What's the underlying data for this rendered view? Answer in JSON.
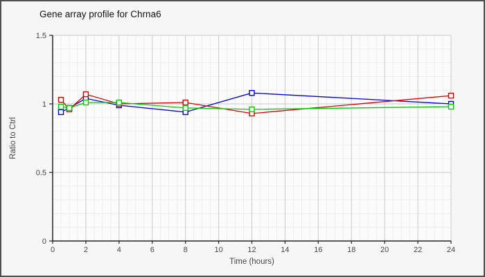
{
  "window": {
    "title": "Gene array profile for Chrna6"
  },
  "chart_data": {
    "type": "line",
    "title": "Gene array profile for Chrna6",
    "xlabel": "Time (hours)",
    "ylabel": "Ratio to Ctrl",
    "x": [
      0.5,
      1,
      2,
      4,
      8,
      12,
      24
    ],
    "series": [
      {
        "name": "series-blue",
        "color": "#0000dd",
        "values": [
          0.94,
          0.97,
          1.04,
          0.99,
          0.94,
          1.08,
          1.0
        ]
      },
      {
        "name": "series-red",
        "color": "#dd0000",
        "values": [
          1.03,
          0.96,
          1.07,
          1.0,
          1.01,
          0.93,
          1.06
        ]
      },
      {
        "name": "series-green",
        "color": "#00cc00",
        "values": [
          0.98,
          0.97,
          1.01,
          1.01,
          0.97,
          0.96,
          0.98
        ]
      }
    ],
    "xlim": [
      0,
      24
    ],
    "ylim": [
      0,
      1.5
    ],
    "x_ticks": [
      0,
      2,
      4,
      6,
      8,
      10,
      12,
      14,
      16,
      18,
      20,
      22,
      24
    ],
    "x_tick_labels": [
      "0",
      "2",
      "4",
      "6",
      "8",
      "10",
      "12",
      "14",
      "16",
      "18",
      "20",
      "22",
      "24"
    ],
    "y_ticks": [
      0,
      0.5,
      1,
      1.5
    ],
    "y_tick_labels": [
      "0",
      "0.5",
      "1",
      "1.5"
    ],
    "x_minor_step": 0.5,
    "y_minor_step": 0.1,
    "grid": true,
    "legend": "none",
    "marker": "open-square",
    "colors": {
      "figure_bg": "#f6f6f6",
      "plot_bg": "#fbfbfb",
      "major_grid": "#c9c9c9",
      "minor_grid": "#ededed",
      "axis": "#222222",
      "tick_label": "#444444",
      "title": "#111111",
      "frame_border": "#4f4f4f"
    }
  }
}
